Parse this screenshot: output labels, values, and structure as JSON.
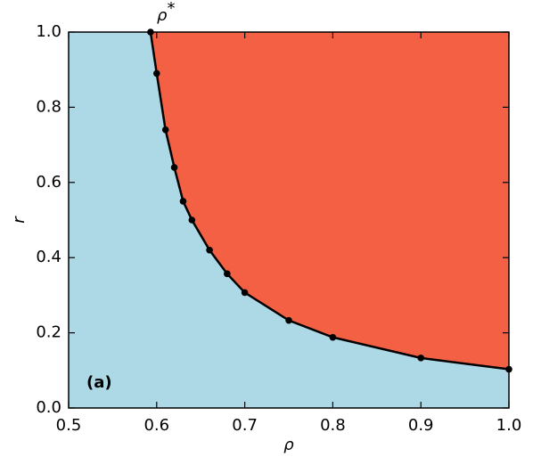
{
  "chart_data": {
    "type": "line",
    "x_label": "ρ",
    "y_label": "r",
    "x": [
      0.593,
      0.6,
      0.61,
      0.62,
      0.63,
      0.64,
      0.66,
      0.68,
      0.7,
      0.75,
      0.8,
      0.9,
      1.0
    ],
    "values": [
      1.0,
      0.89,
      0.74,
      0.64,
      0.55,
      0.5,
      0.42,
      0.357,
      0.307,
      0.233,
      0.188,
      0.133,
      0.103
    ],
    "color": "#000000",
    "below_color": "#add8e6",
    "above_color": "#f46043",
    "xlim": [
      0.5,
      1.0
    ],
    "xticks": [
      0.5,
      0.6,
      0.7,
      0.8,
      0.9,
      {
        "value": 1.0,
        "label": "1.0"
      }
    ],
    "ylim": [
      0.0,
      1.0
    ],
    "yticks": [
      {
        "value": 0.0,
        "label": "0.0"
      },
      0.2,
      0.4,
      0.6,
      0.8,
      {
        "value": 1.0,
        "label": "1.0"
      }
    ],
    "annotations": {
      "critical": {
        "base": "ρ",
        "sup": "*"
      },
      "panel": "(a)"
    }
  }
}
